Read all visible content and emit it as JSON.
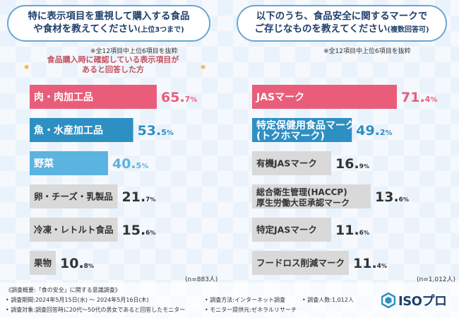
{
  "left_panel": {
    "question_line1": "特に表示項目を重視して購入する食品",
    "question_line2": "や食材を教えてください",
    "question_suffix": "(上位3つまで)",
    "note": "※全12項目中上位6項目を抜粋",
    "subhead_line1": "食品購入時に確認している表示項目が",
    "subhead_line2": "あると回答した方",
    "star": "*",
    "n": "(n=883人)"
  },
  "right_panel": {
    "question_line1": "以下のうち、食品安全に関するマークで",
    "question_line2": "ご存じなものを教えてください",
    "question_suffix": "(複数回答可)",
    "note": "※全12項目中上位6項目を抜粋",
    "n": "(n=1,012人)"
  },
  "chart_data": [
    {
      "type": "bar",
      "orientation": "horizontal",
      "categories": [
        "肉・肉加工品",
        "魚・水産加工品",
        "野菜",
        "卵・チーズ・乳製品",
        "冷凍・レトルト食品",
        "果物"
      ],
      "values": [
        65.7,
        53.5,
        40.5,
        21.7,
        15.6,
        10.8
      ],
      "unit": "%",
      "value_labels": [
        {
          "int": "65.",
          "dec": "7",
          "unit": "%"
        },
        {
          "int": "53.",
          "dec": "5",
          "unit": "%"
        },
        {
          "int": "40.",
          "dec": "5",
          "unit": "%"
        },
        {
          "int": "21.",
          "dec": "7",
          "unit": "%"
        },
        {
          "int": "15.",
          "dec": "6",
          "unit": "%"
        },
        {
          "int": "10.",
          "dec": "8",
          "unit": "%"
        }
      ],
      "colors": [
        "#e95d7b",
        "#2e8fc3",
        "#5bb3e0",
        "#d9d9d9",
        "#d9d9d9",
        "#d9d9d9"
      ]
    },
    {
      "type": "bar",
      "orientation": "horizontal",
      "categories": [
        "JASマーク",
        "特定保健用食品マーク(トクホマーク)",
        "有機JASマーク",
        "総合衛生管理(HACCP)厚生労働大臣承認マーク",
        "特定JASマーク",
        "フードロス削減マーク"
      ],
      "label_lines": [
        [
          "JASマーク"
        ],
        [
          "特定保健用食品マーク",
          "(トクホマーク)"
        ],
        [
          "有機JASマーク"
        ],
        [
          "総合衛生管理(HACCP)",
          "厚生労働大臣承認マーク"
        ],
        [
          "特定JASマーク"
        ],
        [
          "フードロス削減マーク"
        ]
      ],
      "values": [
        71.4,
        49.2,
        16.9,
        13.6,
        11.6,
        11.4
      ],
      "unit": "%",
      "value_labels": [
        {
          "int": "71.",
          "dec": "4",
          "unit": "%"
        },
        {
          "int": "49.",
          "dec": "2",
          "unit": "%"
        },
        {
          "int": "16.",
          "dec": "9",
          "unit": "%"
        },
        {
          "int": "13.",
          "dec": "6",
          "unit": "%"
        },
        {
          "int": "11.",
          "dec": "6",
          "unit": "%"
        },
        {
          "int": "11.",
          "dec": "4",
          "unit": "%"
        }
      ],
      "colors": [
        "#e95d7b",
        "#2e8fc3",
        "#d9d9d9",
        "#d9d9d9",
        "#d9d9d9",
        "#d9d9d9"
      ]
    }
  ],
  "footer": {
    "survey_title": "《調査概要:「食の安全」に関する意識調査》",
    "period": "• 調査期間:2024年5月15日(水) 〜 2024年5月16日(木)",
    "target": "• 調査対象:調査回答時に20代〜50代の男女であると回答したモニター",
    "method": "• 調査方法:インターネット調査",
    "count": "• 調査人数:1,012人",
    "provider": "• モニター提供元:ゼネラルリサーチ",
    "logo_text": "ISOプロ"
  }
}
